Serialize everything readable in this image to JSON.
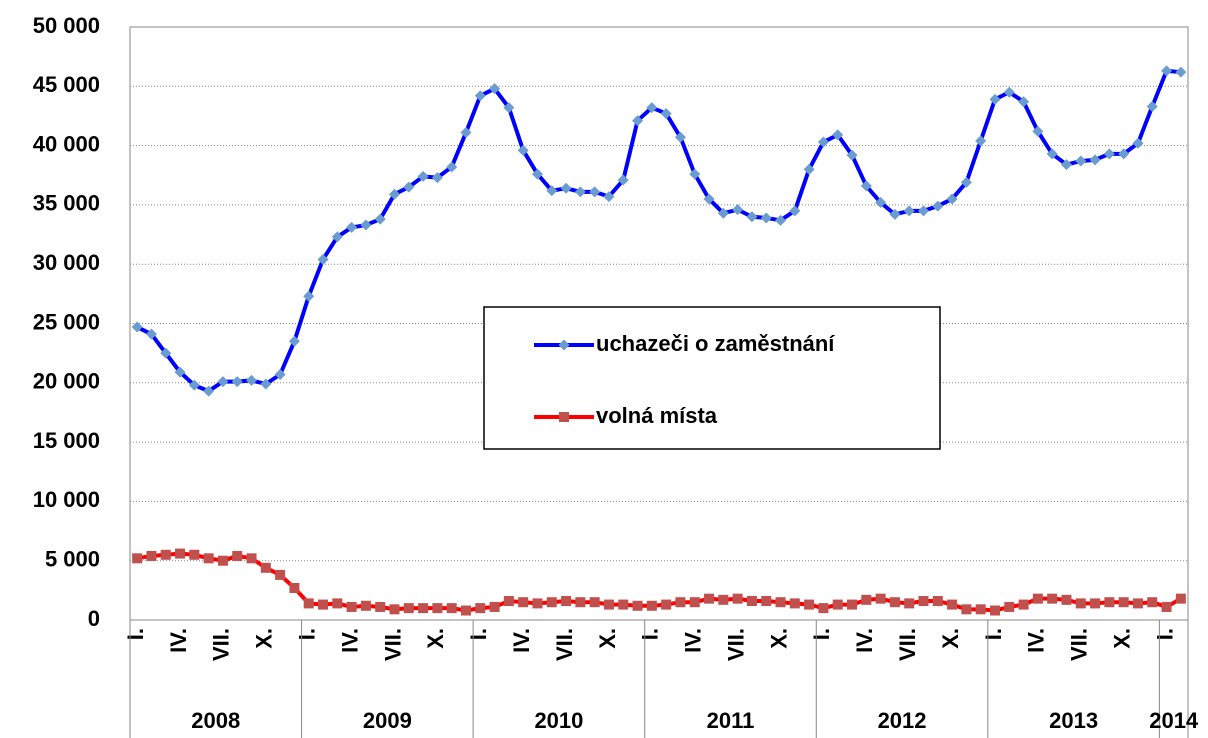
{
  "chart_data": {
    "type": "line",
    "categories": [
      "I.",
      null,
      null,
      "IV.",
      null,
      null,
      "VII.",
      null,
      null,
      "X.",
      null,
      null,
      "I.",
      null,
      null,
      "IV.",
      null,
      null,
      "VII.",
      null,
      null,
      "X.",
      null,
      null,
      "I.",
      null,
      null,
      "IV.",
      null,
      null,
      "VII.",
      null,
      null,
      "X.",
      null,
      null,
      "I.",
      null,
      null,
      "IV.",
      null,
      null,
      "VII.",
      null,
      null,
      "X.",
      null,
      null,
      "I.",
      null,
      null,
      "IV.",
      null,
      null,
      "VII.",
      null,
      null,
      "X.",
      null,
      null,
      "I.",
      null,
      null,
      "IV.",
      null,
      null,
      "VII.",
      null,
      null,
      "X.",
      null,
      null,
      "I.",
      null
    ],
    "groups": [
      {
        "name": "2008",
        "count": 12
      },
      {
        "name": "2009",
        "count": 12
      },
      {
        "name": "2010",
        "count": 12
      },
      {
        "name": "2011",
        "count": 12
      },
      {
        "name": "2012",
        "count": 12
      },
      {
        "name": "2013",
        "count": 12
      },
      {
        "name": "2014",
        "count": 2
      }
    ],
    "series": [
      {
        "name": "uchazeči o zaměstnání",
        "color": "#0000ff",
        "marker": "diamond",
        "marker_color": "#6a9bd1",
        "values": [
          24700,
          24100,
          22500,
          20900,
          19800,
          19300,
          20100,
          20100,
          20200,
          19900,
          20700,
          23500,
          27300,
          30400,
          32300,
          33100,
          33300,
          33800,
          35900,
          36500,
          37400,
          37300,
          38200,
          41100,
          44200,
          44800,
          43200,
          39600,
          37600,
          36200,
          36400,
          36100,
          36100,
          35700,
          37100,
          42100,
          43200,
          42700,
          40700,
          37600,
          35500,
          34300,
          34600,
          34000,
          33900,
          33700,
          34500,
          38000,
          40300,
          40900,
          39200,
          36600,
          35200,
          34200,
          34500,
          34500,
          34900,
          35500,
          36900,
          40400,
          43900,
          44500,
          43700,
          41200,
          39300,
          38400,
          38700,
          38800,
          39300,
          39300,
          40200,
          43300,
          46300,
          46200
        ]
      },
      {
        "name": "volná místa",
        "color": "#ff0000",
        "marker": "square",
        "marker_color": "#c0504d",
        "values": [
          5200,
          5400,
          5500,
          5600,
          5500,
          5200,
          5000,
          5400,
          5200,
          4400,
          3800,
          2700,
          1400,
          1300,
          1400,
          1100,
          1200,
          1100,
          900,
          1000,
          1000,
          1000,
          1000,
          800,
          1000,
          1100,
          1600,
          1500,
          1400,
          1500,
          1600,
          1500,
          1500,
          1300,
          1300,
          1200,
          1200,
          1300,
          1500,
          1500,
          1800,
          1700,
          1800,
          1600,
          1600,
          1500,
          1400,
          1300,
          1000,
          1300,
          1300,
          1700,
          1800,
          1500,
          1400,
          1600,
          1600,
          1300,
          900,
          900,
          800,
          1100,
          1300,
          1800,
          1800,
          1700,
          1400,
          1400,
          1500,
          1500,
          1400,
          1500,
          1100,
          1800
        ]
      }
    ],
    "ylim": [
      0,
      50000
    ],
    "yticks": [
      0,
      {
        "value": 5000,
        "label": "5 000"
      },
      {
        "value": 10000,
        "label": "10 000"
      },
      {
        "value": 15000,
        "label": "15 000"
      },
      {
        "value": 20000,
        "label": "20 000"
      },
      {
        "value": 25000,
        "label": "25 000"
      },
      {
        "value": 30000,
        "label": "30 000"
      },
      {
        "value": 35000,
        "label": "35 000"
      },
      {
        "value": 40000,
        "label": "40 000"
      },
      {
        "value": 45000,
        "label": "45 000"
      },
      {
        "value": 50000,
        "label": "50 000"
      }
    ],
    "grid": true,
    "legend": "center"
  }
}
